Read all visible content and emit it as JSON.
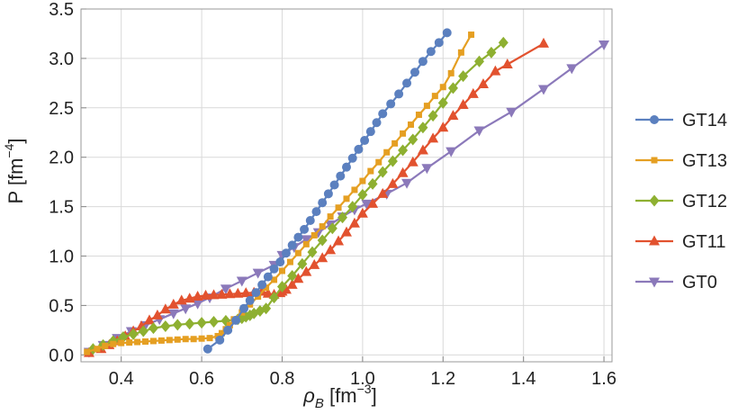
{
  "chart_data": {
    "type": "line",
    "xlabel": {
      "main": "ρ",
      "sub": "B",
      "unit": " [fm",
      "sup": "−3",
      "close": "]"
    },
    "ylabel": {
      "main": "P [fm",
      "sup": "−4",
      "close": "]"
    },
    "xlim": [
      0.3,
      1.62
    ],
    "ylim": [
      -0.07,
      3.5
    ],
    "x_ticks": [
      "0.4",
      "0.6",
      "0.8",
      "1.0",
      "1.2",
      "1.4",
      "1.6"
    ],
    "y_ticks": [
      "0.0",
      "0.5",
      "1.0",
      "1.5",
      "2.0",
      "2.5",
      "3.0",
      "3.5"
    ],
    "grid": true,
    "legend_position": "right",
    "series": [
      {
        "name": "GT14",
        "color": "#5B80BF",
        "marker": "circle",
        "x": [
          0.615,
          0.645,
          0.665,
          0.685,
          0.705,
          0.72,
          0.735,
          0.75,
          0.765,
          0.78,
          0.795,
          0.81,
          0.825,
          0.84,
          0.855,
          0.87,
          0.885,
          0.9,
          0.915,
          0.93,
          0.945,
          0.96,
          0.975,
          0.99,
          1.005,
          1.02,
          1.035,
          1.05,
          1.07,
          1.09,
          1.11,
          1.13,
          1.15,
          1.17,
          1.19,
          1.21
        ],
        "y": [
          0.06,
          0.15,
          0.25,
          0.35,
          0.47,
          0.55,
          0.63,
          0.71,
          0.79,
          0.87,
          0.94,
          1.03,
          1.11,
          1.19,
          1.27,
          1.36,
          1.45,
          1.54,
          1.63,
          1.72,
          1.81,
          1.9,
          1.99,
          2.08,
          2.17,
          2.26,
          2.35,
          2.44,
          2.54,
          2.64,
          2.75,
          2.86,
          2.97,
          3.07,
          3.16,
          3.26
        ]
      },
      {
        "name": "GT13",
        "color": "#E59F22",
        "marker": "square",
        "x": [
          0.315,
          0.34,
          0.36,
          0.38,
          0.4,
          0.42,
          0.44,
          0.46,
          0.48,
          0.5,
          0.52,
          0.54,
          0.56,
          0.58,
          0.6,
          0.62,
          0.64,
          0.65,
          0.66,
          0.67,
          0.68,
          0.7,
          0.72,
          0.74,
          0.76,
          0.78,
          0.8,
          0.82,
          0.84,
          0.86,
          0.88,
          0.9,
          0.92,
          0.94,
          0.96,
          0.98,
          1.0,
          1.02,
          1.04,
          1.06,
          1.08,
          1.1,
          1.12,
          1.14,
          1.16,
          1.18,
          1.2,
          1.22,
          1.245,
          1.27
        ],
        "y": [
          0.03,
          0.06,
          0.09,
          0.11,
          0.12,
          0.125,
          0.13,
          0.135,
          0.14,
          0.145,
          0.15,
          0.155,
          0.16,
          0.16,
          0.165,
          0.17,
          0.19,
          0.22,
          0.26,
          0.3,
          0.36,
          0.43,
          0.51,
          0.59,
          0.68,
          0.76,
          0.85,
          0.94,
          1.03,
          1.12,
          1.21,
          1.3,
          1.4,
          1.49,
          1.58,
          1.67,
          1.76,
          1.86,
          1.95,
          2.05,
          2.14,
          2.24,
          2.33,
          2.43,
          2.52,
          2.62,
          2.71,
          2.85,
          3.06,
          3.24
        ]
      },
      {
        "name": "GT12",
        "color": "#8EB031",
        "marker": "diamond",
        "x": [
          0.33,
          0.355,
          0.38,
          0.405,
          0.43,
          0.455,
          0.48,
          0.51,
          0.54,
          0.57,
          0.6,
          0.63,
          0.66,
          0.69,
          0.7,
          0.71,
          0.72,
          0.73,
          0.745,
          0.76,
          0.78,
          0.8,
          0.825,
          0.85,
          0.875,
          0.9,
          0.925,
          0.95,
          0.975,
          1.0,
          1.025,
          1.05,
          1.075,
          1.1,
          1.125,
          1.15,
          1.175,
          1.2,
          1.225,
          1.25,
          1.29,
          1.32,
          1.35
        ],
        "y": [
          0.06,
          0.1,
          0.14,
          0.18,
          0.21,
          0.24,
          0.27,
          0.29,
          0.305,
          0.315,
          0.325,
          0.335,
          0.345,
          0.36,
          0.37,
          0.385,
          0.4,
          0.42,
          0.445,
          0.47,
          0.58,
          0.69,
          0.8,
          0.92,
          1.04,
          1.16,
          1.28,
          1.39,
          1.5,
          1.62,
          1.73,
          1.85,
          1.96,
          2.07,
          2.18,
          2.3,
          2.42,
          2.55,
          2.7,
          2.82,
          2.97,
          3.06,
          3.16
        ]
      },
      {
        "name": "GT11",
        "color": "#E2522F",
        "marker": "triangle-up",
        "x": [
          0.32,
          0.35,
          0.37,
          0.39,
          0.41,
          0.43,
          0.45,
          0.47,
          0.49,
          0.51,
          0.53,
          0.55,
          0.57,
          0.59,
          0.61,
          0.63,
          0.65,
          0.67,
          0.69,
          0.71,
          0.73,
          0.75,
          0.765,
          0.78,
          0.795,
          0.8,
          0.81,
          0.825,
          0.84,
          0.86,
          0.88,
          0.9,
          0.92,
          0.94,
          0.96,
          0.98,
          1.0,
          1.025,
          1.05,
          1.075,
          1.1,
          1.125,
          1.15,
          1.175,
          1.2,
          1.225,
          1.25,
          1.275,
          1.3,
          1.33,
          1.36,
          1.45
        ],
        "y": [
          0.02,
          0.06,
          0.1,
          0.14,
          0.19,
          0.24,
          0.29,
          0.35,
          0.4,
          0.46,
          0.51,
          0.55,
          0.57,
          0.59,
          0.6,
          0.605,
          0.61,
          0.615,
          0.62,
          0.625,
          0.63,
          0.64,
          0.62,
          0.61,
          0.625,
          0.64,
          0.66,
          0.71,
          0.77,
          0.84,
          0.91,
          0.98,
          1.06,
          1.15,
          1.24,
          1.33,
          1.43,
          1.53,
          1.63,
          1.73,
          1.84,
          1.95,
          2.07,
          2.19,
          2.3,
          2.42,
          2.53,
          2.64,
          2.74,
          2.87,
          2.94,
          3.15
        ]
      },
      {
        "name": "GT0",
        "color": "#8B79BA",
        "marker": "triangle-down",
        "x": [
          0.32,
          0.355,
          0.39,
          0.425,
          0.46,
          0.495,
          0.53,
          0.56,
          0.59,
          0.62,
          0.66,
          0.7,
          0.74,
          0.78,
          0.8,
          0.83,
          0.86,
          0.89,
          0.92,
          0.95,
          0.98,
          1.01,
          1.06,
          1.11,
          1.16,
          1.22,
          1.29,
          1.37,
          1.45,
          1.52,
          1.6
        ],
        "y": [
          0.03,
          0.1,
          0.17,
          0.24,
          0.3,
          0.36,
          0.42,
          0.47,
          0.52,
          0.58,
          0.67,
          0.75,
          0.83,
          0.91,
          1.01,
          1.09,
          1.17,
          1.24,
          1.32,
          1.4,
          1.47,
          1.53,
          1.63,
          1.74,
          1.89,
          2.06,
          2.27,
          2.46,
          2.69,
          2.9,
          3.14
        ]
      }
    ]
  }
}
